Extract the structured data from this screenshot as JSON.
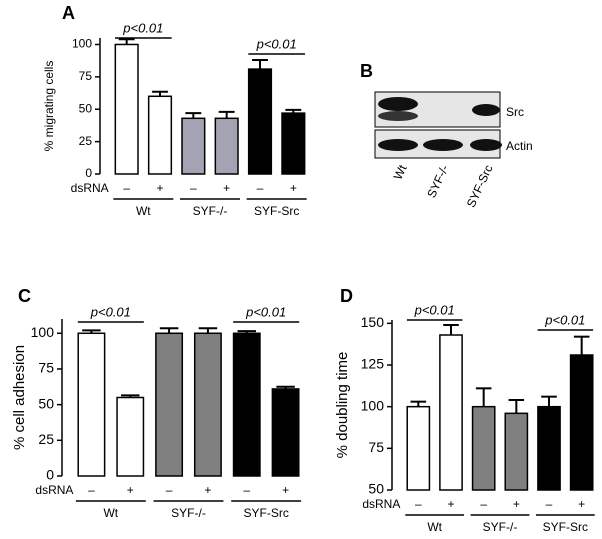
{
  "chart_data": [
    {
      "type": "bar",
      "panel": "A",
      "ylabel": "% migrating cells",
      "xlabel": "dsRNA",
      "categories": [
        "–",
        "+",
        "–",
        "+",
        "–",
        "+"
      ],
      "groups": [
        "Wt",
        "SYF-/-",
        "SYF-Src"
      ],
      "values": [
        100,
        60,
        43,
        43,
        81,
        47
      ],
      "errors": [
        4,
        3.5,
        4,
        5,
        7,
        2.5
      ],
      "colors": [
        "#ffffff",
        "#ffffff",
        "#a3a3b3",
        "#a3a3b3",
        "#000000",
        "#000000"
      ],
      "ylim": [
        0,
        105
      ],
      "yticks": [
        0,
        25,
        50,
        75,
        100
      ],
      "annotations": [
        "p<0.01",
        "p<0.01"
      ]
    },
    {
      "type": "bar",
      "panel": "C",
      "ylabel": "% cell adhesion",
      "xlabel": "dsRNA",
      "categories": [
        "–",
        "+",
        "–",
        "+",
        "–",
        "+"
      ],
      "groups": [
        "Wt",
        "SYF-/-",
        "SYF-Src"
      ],
      "values": [
        100,
        55,
        100,
        100,
        100,
        61
      ],
      "errors": [
        2,
        1.5,
        3.5,
        3.5,
        1.5,
        1.5
      ],
      "colors": [
        "#ffffff",
        "#ffffff",
        "#808080",
        "#808080",
        "#000000",
        "#000000"
      ],
      "ylim": [
        0,
        110
      ],
      "yticks": [
        0,
        25,
        50,
        75,
        100
      ],
      "annotations": [
        "p<0.01",
        "p<0.01"
      ]
    },
    {
      "type": "bar",
      "panel": "D",
      "ylabel": "% doubling time",
      "xlabel": "dsRNA",
      "categories": [
        "–",
        "+",
        "–",
        "+",
        "–",
        "+"
      ],
      "groups": [
        "Wt",
        "SYF-/-",
        "SYF-Src"
      ],
      "values": [
        100,
        143,
        100,
        96,
        100,
        131
      ],
      "errors": [
        3,
        6,
        11,
        8,
        6,
        11
      ],
      "colors": [
        "#ffffff",
        "#ffffff",
        "#808080",
        "#808080",
        "#000000",
        "#000000"
      ],
      "ylim": [
        50,
        152
      ],
      "yticks": [
        50,
        75,
        100,
        125,
        150
      ],
      "annotations": [
        "p<0.01",
        "p<0.01"
      ]
    }
  ],
  "blot": {
    "panel": "B",
    "bands": [
      "Src",
      "Actin"
    ],
    "lanes": [
      "Wt",
      "SYF-/-",
      "SYF-Src"
    ]
  }
}
